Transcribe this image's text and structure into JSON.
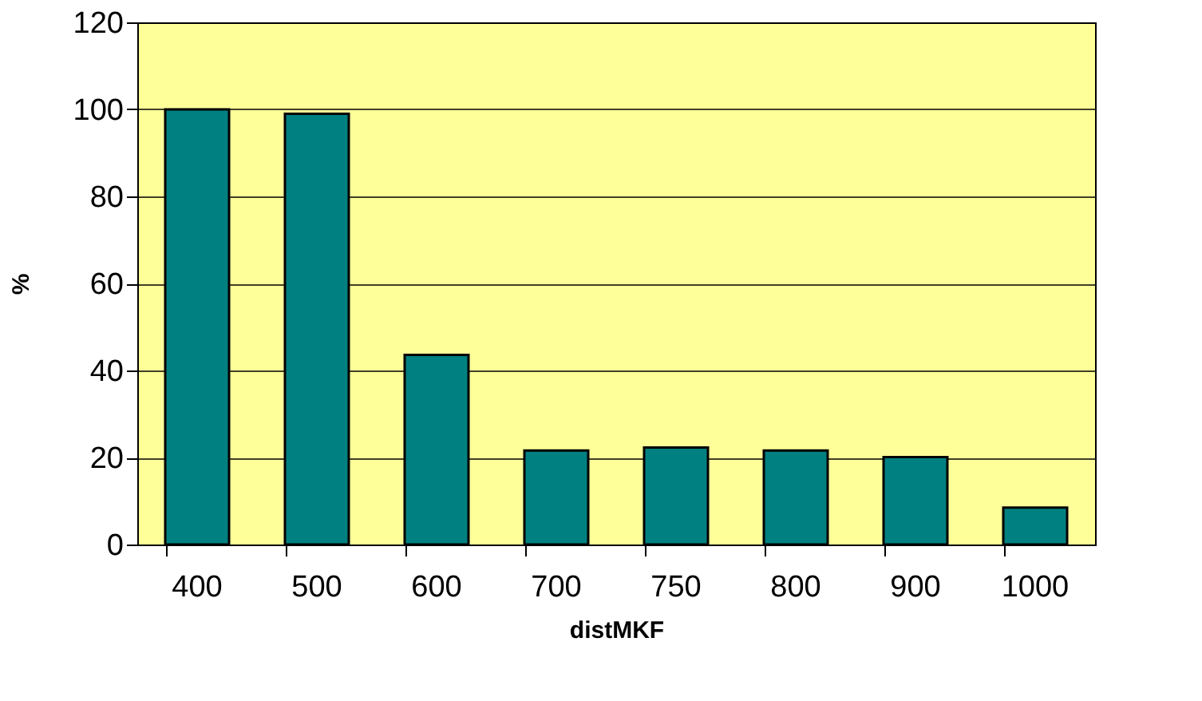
{
  "chart_data": {
    "type": "bar",
    "xlabel": "distMKF",
    "ylabel": "%",
    "categories": [
      "400",
      "500",
      "600",
      "700",
      "750",
      "800",
      "900",
      "1000"
    ],
    "values": [
      100,
      99,
      43.6,
      21.6,
      22.3,
      21.6,
      20.1,
      8.5
    ],
    "color": "#008080",
    "ylim": [
      0,
      120
    ],
    "yticks": [
      0,
      20,
      40,
      60,
      80,
      100,
      120
    ],
    "grid": "y"
  }
}
